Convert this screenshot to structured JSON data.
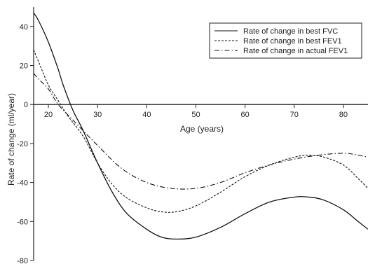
{
  "chart_data": {
    "type": "line",
    "title": "",
    "xlabel": "Age (years)",
    "ylabel": "Rate of change (ml/year)",
    "xlim": [
      17,
      85
    ],
    "ylim": [
      -80,
      50
    ],
    "x_ticks": [
      20,
      30,
      40,
      50,
      60,
      70,
      80
    ],
    "y_ticks": [
      40,
      20,
      0,
      -20,
      -40,
      -60,
      -80
    ],
    "legend_position": "top-right",
    "grid": false,
    "series": [
      {
        "name": "Rate of change in best FVC",
        "style": "solid",
        "points": [
          [
            17,
            47
          ],
          [
            18,
            43
          ],
          [
            20,
            32
          ],
          [
            22,
            18
          ],
          [
            23,
            10
          ],
          [
            25,
            -3
          ],
          [
            27,
            -13
          ],
          [
            30,
            -30
          ],
          [
            33,
            -45
          ],
          [
            36,
            -56
          ],
          [
            40,
            -64
          ],
          [
            43,
            -68
          ],
          [
            46,
            -69
          ],
          [
            50,
            -68
          ],
          [
            55,
            -63
          ],
          [
            60,
            -56
          ],
          [
            65,
            -50
          ],
          [
            70,
            -47.5
          ],
          [
            73,
            -47.5
          ],
          [
            76,
            -49
          ],
          [
            80,
            -54
          ],
          [
            83,
            -60
          ],
          [
            85,
            -64
          ]
        ]
      },
      {
        "name": "Rate of change in best FEV1",
        "style": "dashed",
        "points": [
          [
            17,
            28
          ],
          [
            18,
            22
          ],
          [
            20,
            10
          ],
          [
            22,
            2
          ],
          [
            24,
            -6
          ],
          [
            27,
            -16
          ],
          [
            30,
            -30
          ],
          [
            33,
            -41
          ],
          [
            36,
            -48
          ],
          [
            40,
            -53
          ],
          [
            43,
            -55
          ],
          [
            46,
            -55
          ],
          [
            50,
            -52
          ],
          [
            55,
            -45
          ],
          [
            60,
            -37
          ],
          [
            65,
            -31
          ],
          [
            70,
            -27
          ],
          [
            73,
            -26
          ],
          [
            76,
            -27
          ],
          [
            80,
            -31
          ],
          [
            83,
            -38
          ],
          [
            85,
            -43
          ]
        ]
      },
      {
        "name": "Rate of change in actual FEV1",
        "style": "dashdot",
        "points": [
          [
            17,
            16
          ],
          [
            18,
            13
          ],
          [
            20,
            8
          ],
          [
            22,
            0
          ],
          [
            25,
            -8
          ],
          [
            30,
            -21
          ],
          [
            35,
            -33
          ],
          [
            40,
            -40
          ],
          [
            45,
            -43
          ],
          [
            50,
            -43
          ],
          [
            55,
            -40
          ],
          [
            60,
            -35
          ],
          [
            65,
            -31
          ],
          [
            70,
            -28
          ],
          [
            75,
            -26
          ],
          [
            80,
            -25
          ],
          [
            83,
            -26
          ],
          [
            85,
            -27
          ]
        ]
      }
    ]
  }
}
